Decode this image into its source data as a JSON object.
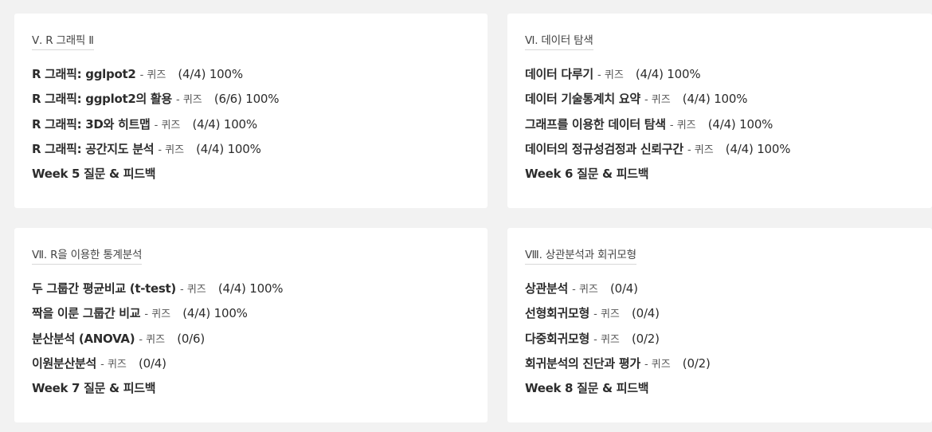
{
  "sections": [
    {
      "title": "Ⅴ. R 그래픽 Ⅱ",
      "items": [
        {
          "label": "R 그래픽: gglpot2",
          "quiz": "퀴즈",
          "score": "(4/4) 100%"
        },
        {
          "label": "R 그래픽: ggplot2의 활용",
          "quiz": "퀴즈",
          "score": "(6/6) 100%"
        },
        {
          "label": "R 그래픽: 3D와 히트맵",
          "quiz": "퀴즈",
          "score": "(4/4) 100%"
        },
        {
          "label": "R 그래픽: 공간지도 분석",
          "quiz": "퀴즈",
          "score": "(4/4) 100%"
        },
        {
          "label": "Week 5 질문 & 피드백"
        }
      ]
    },
    {
      "title": "Ⅵ. 데이터 탐색",
      "items": [
        {
          "label": "데이터 다루기",
          "quiz": "퀴즈",
          "score": "(4/4) 100%"
        },
        {
          "label": "데이터 기술통계치 요약",
          "quiz": "퀴즈",
          "score": "(4/4) 100%"
        },
        {
          "label": "그래프를 이용한 데이터 탐색",
          "quiz": "퀴즈",
          "score": "(4/4) 100%"
        },
        {
          "label": "데이터의 정규성검정과 신뢰구간",
          "quiz": "퀴즈",
          "score": "(4/4) 100%"
        },
        {
          "label": "Week 6 질문 & 피드백"
        }
      ]
    },
    {
      "title": "Ⅶ. R을 이용한 통계분석",
      "items": [
        {
          "label": "두 그룹간 평균비교 (t-test)",
          "quiz": "퀴즈",
          "score": "(4/4) 100%"
        },
        {
          "label": "짝을 이룬 그룹간 비교",
          "quiz": "퀴즈",
          "score": "(4/4) 100%"
        },
        {
          "label": "분산분석 (ANOVA)",
          "quiz": "퀴즈",
          "score": "(0/6)"
        },
        {
          "label": "이원분산분석",
          "quiz": "퀴즈",
          "score": "(0/4)"
        },
        {
          "label": "Week 7 질문 & 피드백"
        }
      ]
    },
    {
      "title": "Ⅷ. 상관분석과 회귀모형",
      "items": [
        {
          "label": "상관분석",
          "quiz": "퀴즈",
          "score": "(0/4)"
        },
        {
          "label": "선형회귀모형",
          "quiz": "퀴즈",
          "score": "(0/4)"
        },
        {
          "label": "다중회귀모형",
          "quiz": "퀴즈",
          "score": "(0/2)"
        },
        {
          "label": "회귀분석의 진단과 평가",
          "quiz": "퀴즈",
          "score": "(0/2)"
        },
        {
          "label": "Week 8 질문 & 피드백"
        }
      ]
    }
  ]
}
